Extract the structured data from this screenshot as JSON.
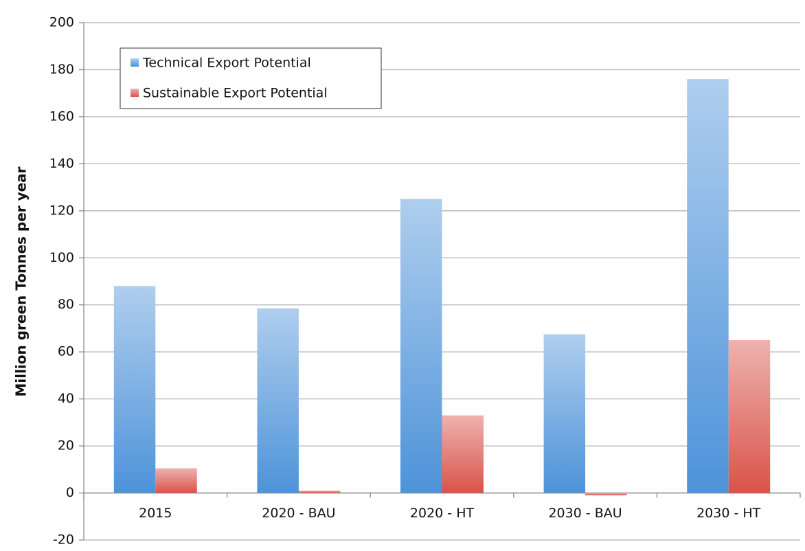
{
  "chart_data": {
    "type": "bar",
    "y_label": "Million green Tonnes per year",
    "categories": [
      "2015",
      "2020 - BAU",
      "2020 - HT",
      "2030 - BAU",
      "2030 - HT"
    ],
    "series": [
      {
        "name": "Technical Export Potential",
        "color": "#4d93d9",
        "values": [
          88,
          78.5,
          125,
          67.5,
          176
        ]
      },
      {
        "name": "Sustainable Export Potential",
        "color": "#d9534a",
        "values": [
          10.5,
          1,
          33,
          -1,
          65
        ]
      }
    ],
    "ylim": [
      -20,
      200
    ],
    "yticks": [
      -20,
      0,
      20,
      40,
      60,
      80,
      100,
      120,
      140,
      160,
      180,
      200
    ],
    "grid": true,
    "legend": "upper left"
  }
}
